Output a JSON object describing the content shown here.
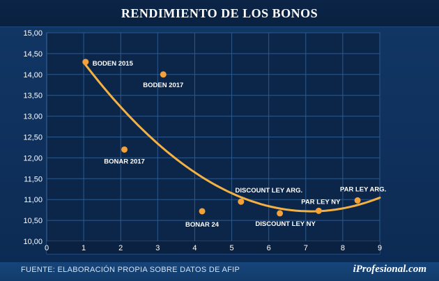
{
  "chart_data": {
    "type": "scatter",
    "title": "RENDIMIENTO DE LOS BONOS",
    "xlabel": "",
    "ylabel": "",
    "xlim": [
      0,
      9
    ],
    "ylim": [
      10.0,
      15.0
    ],
    "x_ticks": [
      "0",
      "1",
      "2",
      "3",
      "4",
      "5",
      "6",
      "7",
      "8",
      "9"
    ],
    "y_ticks": [
      "10,00",
      "10,50",
      "11,00",
      "11,50",
      "12,00",
      "12,50",
      "13,00",
      "13,50",
      "14,00",
      "14,50",
      "15,00"
    ],
    "points": [
      {
        "label": "BODEN 2015",
        "x": 1.05,
        "y": 14.3
      },
      {
        "label": "BODEN 2017",
        "x": 3.15,
        "y": 14.0
      },
      {
        "label": "BONAR 2017",
        "x": 2.1,
        "y": 12.2
      },
      {
        "label": "BONAR 24",
        "x": 4.2,
        "y": 10.72
      },
      {
        "label": "DISCOUNT LEY ARG.",
        "x": 5.25,
        "y": 10.95
      },
      {
        "label": "DISCOUNT LEY NY",
        "x": 6.3,
        "y": 10.67
      },
      {
        "label": "PAR LEY NY",
        "x": 7.35,
        "y": 10.73
      },
      {
        "label": "PAR LEY ARG.",
        "x": 8.4,
        "y": 10.98
      }
    ],
    "trendline": {
      "type": "polynomial",
      "x": [
        1.0,
        9.0
      ],
      "y": [
        14.22,
        10.92
      ]
    },
    "colors": {
      "point": "#f3a138",
      "trend": "#f3b144",
      "grid": "#2b5a8e",
      "plot_bg": "#0c2649"
    }
  },
  "source": "FUENTE: ELABORACIÓN PROPIA SOBRE DATOS DE AFIP",
  "brand": "iProfesional.com"
}
